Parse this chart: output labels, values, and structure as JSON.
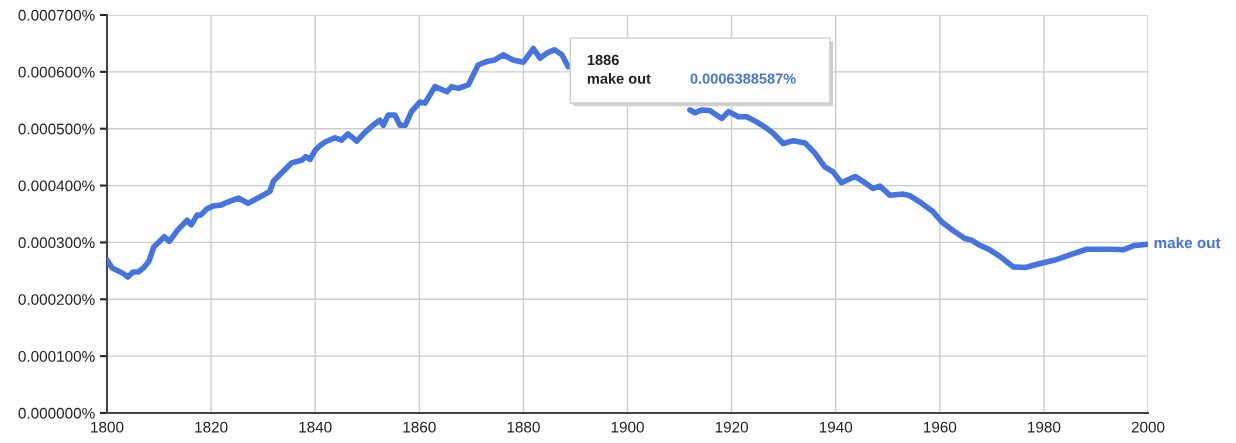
{
  "chart_data": {
    "type": "line",
    "legend": false,
    "grid": true,
    "marker": "none",
    "line_style": "solid",
    "xlim": [
      1800,
      2000
    ],
    "xticks": [
      1800,
      1820,
      1840,
      1860,
      1880,
      1900,
      1920,
      1940,
      1960,
      1980,
      2000
    ],
    "ylim": [
      0,
      0.0007
    ],
    "yticks": [
      {
        "value": 0,
        "label": "0.000000%"
      },
      {
        "value": 0.0001,
        "label": "0.000100%"
      },
      {
        "value": 0.0002,
        "label": "0.000200%"
      },
      {
        "value": 0.0003,
        "label": "0.000300%"
      },
      {
        "value": 0.0004,
        "label": "0.000400%"
      },
      {
        "value": 0.0005,
        "label": "0.000500%"
      },
      {
        "value": 0.0006,
        "label": "0.000600%"
      },
      {
        "value": 0.0007,
        "label": "0.000700%"
      }
    ],
    "annotations": [
      "1886",
      "make out",
      "0.0006388587%"
    ],
    "series": [
      {
        "name": "make out",
        "color": "#4374e0",
        "x": [
          1800,
          1801,
          1803,
          1804,
          1805,
          1806,
          1807,
          1808,
          1809,
          1811,
          1812,
          1813.6,
          1815.4,
          1816.2,
          1817.3,
          1818,
          1819.2,
          1820.4,
          1822,
          1823.2,
          1825.2,
          1827.1,
          1829.8,
          1831.3,
          1832,
          1833.2,
          1835.5,
          1837.5,
          1838.2,
          1839,
          1840,
          1841,
          1842,
          1843.8,
          1845.1,
          1846.3,
          1848,
          1849.6,
          1851.1,
          1852.4,
          1853.1,
          1854,
          1855.3,
          1856.3,
          1857.3,
          1858.5,
          1860.1,
          1861.1,
          1863,
          1865.3,
          1866.2,
          1867.5,
          1869.4,
          1871.3,
          1872.9,
          1874.5,
          1876.1,
          1878,
          1880,
          1881.9,
          1883.2,
          1884.5,
          1886,
          1887.4,
          1888.6,
          1900,
          1912,
          1913,
          1914.2,
          1915.8,
          1918.1,
          1919.4,
          1921.3,
          1922.9,
          1924.8,
          1926.7,
          1928,
          1929.9,
          1931.9,
          1934.1,
          1936,
          1937.9,
          1939.5,
          1941.1,
          1943.7,
          1945.3,
          1947.2,
          1948.5,
          1950.4,
          1953,
          1954.3,
          1956.5,
          1958.6,
          1960.4,
          1962.4,
          1964.8,
          1966.1,
          1967.7,
          1969.6,
          1971.6,
          1974.1,
          1976.4,
          1979.3,
          1982.1,
          1985,
          1988.2,
          1990.8,
          1993.3,
          1995.2,
          1997.2,
          2000
        ],
        "values": [
          0.000269,
          0.000255,
          0.000246,
          0.000239,
          0.000248,
          0.000248,
          0.000255,
          0.000266,
          0.000292,
          0.00031,
          0.000302,
          0.000322,
          0.000339,
          0.000331,
          0.000348,
          0.000348,
          0.000359,
          0.000364,
          0.000366,
          0.000371,
          0.000378,
          0.000369,
          0.000382,
          0.00039,
          0.000408,
          0.000419,
          0.00044,
          0.000445,
          0.000451,
          0.000446,
          0.000462,
          0.000471,
          0.000477,
          0.000484,
          0.00048,
          0.000491,
          0.000478,
          0.000494,
          0.000506,
          0.000515,
          0.000506,
          0.000524,
          0.000524,
          0.000506,
          0.000506,
          0.00053,
          0.000547,
          0.000545,
          0.000574,
          0.000565,
          0.000574,
          0.000571,
          0.000577,
          0.000612,
          0.000618,
          0.000621,
          0.00063,
          0.000621,
          0.000617,
          0.000641,
          0.000624,
          0.000633,
          0.000639,
          0.00063,
          0.000609,
          null,
          0.000533,
          0.000528,
          0.000533,
          0.000532,
          0.000518,
          0.00053,
          0.000521,
          0.000521,
          0.000512,
          0.000501,
          0.000492,
          0.000474,
          0.000479,
          0.000475,
          0.000457,
          0.000433,
          0.000424,
          0.000405,
          0.000416,
          0.000407,
          0.000395,
          0.000399,
          0.000383,
          0.000385,
          0.000382,
          0.000369,
          0.000355,
          0.000336,
          0.000322,
          0.000307,
          0.000304,
          0.000295,
          0.000287,
          0.000275,
          0.000257,
          0.000256,
          0.000263,
          0.000269,
          0.000278,
          0.000288,
          0.000288,
          0.000288,
          0.000287,
          0.000294,
          0.000297
        ]
      }
    ]
  }
}
